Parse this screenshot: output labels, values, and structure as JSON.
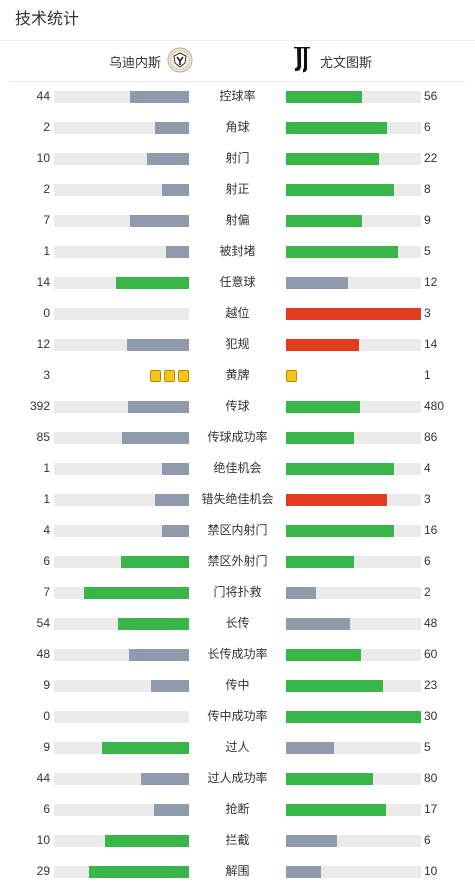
{
  "title": "技术统计",
  "teams": {
    "home": {
      "name": "乌迪内斯",
      "logo_icon": "udinese-crest-icon"
    },
    "away": {
      "name": "尤文图斯",
      "logo_icon": "juventus-logo-icon"
    }
  },
  "colors": {
    "green": "#39b54a",
    "gray": "#8f9aac",
    "red": "#e03c1f",
    "yellow_card": "#f5c518",
    "track": "#ebebeb"
  },
  "stats": [
    {
      "label": "控球率",
      "home": "44",
      "away": "56",
      "home_pct": 0.44,
      "away_pct": 0.56,
      "home_color": "gray",
      "away_color": "green"
    },
    {
      "label": "角球",
      "home": "2",
      "away": "6",
      "home_pct": 0.25,
      "away_pct": 0.75,
      "home_color": "gray",
      "away_color": "green"
    },
    {
      "label": "射门",
      "home": "10",
      "away": "22",
      "home_pct": 0.3125,
      "away_pct": 0.6875,
      "home_color": "gray",
      "away_color": "green"
    },
    {
      "label": "射正",
      "home": "2",
      "away": "8",
      "home_pct": 0.2,
      "away_pct": 0.8,
      "home_color": "gray",
      "away_color": "green"
    },
    {
      "label": "射偏",
      "home": "7",
      "away": "9",
      "home_pct": 0.4375,
      "away_pct": 0.5625,
      "home_color": "gray",
      "away_color": "green"
    },
    {
      "label": "被封堵",
      "home": "1",
      "away": "5",
      "home_pct": 0.1667,
      "away_pct": 0.8333,
      "home_color": "gray",
      "away_color": "green"
    },
    {
      "label": "任意球",
      "home": "14",
      "away": "12",
      "home_pct": 0.5385,
      "away_pct": 0.4615,
      "home_color": "green",
      "away_color": "gray"
    },
    {
      "label": "越位",
      "home": "0",
      "away": "3",
      "home_pct": 0,
      "away_pct": 1,
      "home_color": "gray",
      "away_color": "red"
    },
    {
      "label": "犯规",
      "home": "12",
      "away": "14",
      "home_pct": 0.4615,
      "away_pct": 0.5385,
      "home_color": "gray",
      "away_color": "red"
    },
    {
      "label": "黄牌",
      "home": "3",
      "away": "1",
      "type": "cards",
      "home_cards": 3,
      "away_cards": 1
    },
    {
      "label": "传球",
      "home": "392",
      "away": "480",
      "home_pct": 0.4495,
      "away_pct": 0.5505,
      "home_color": "gray",
      "away_color": "green"
    },
    {
      "label": "传球成功率",
      "home": "85",
      "away": "86",
      "home_pct": 0.497,
      "away_pct": 0.503,
      "home_color": "gray",
      "away_color": "green"
    },
    {
      "label": "绝佳机会",
      "home": "1",
      "away": "4",
      "home_pct": 0.2,
      "away_pct": 0.8,
      "home_color": "gray",
      "away_color": "green"
    },
    {
      "label": "错失绝佳机会",
      "home": "1",
      "away": "3",
      "home_pct": 0.25,
      "away_pct": 0.75,
      "home_color": "gray",
      "away_color": "red"
    },
    {
      "label": "禁区内射门",
      "home": "4",
      "away": "16",
      "home_pct": 0.2,
      "away_pct": 0.8,
      "home_color": "gray",
      "away_color": "green"
    },
    {
      "label": "禁区外射门",
      "home": "6",
      "away": "6",
      "home_pct": 0.5,
      "away_pct": 0.5,
      "home_color": "green",
      "away_color": "green"
    },
    {
      "label": "门将扑救",
      "home": "7",
      "away": "2",
      "home_pct": 0.7778,
      "away_pct": 0.2222,
      "home_color": "green",
      "away_color": "gray"
    },
    {
      "label": "长传",
      "home": "54",
      "away": "48",
      "home_pct": 0.5294,
      "away_pct": 0.4706,
      "home_color": "green",
      "away_color": "gray"
    },
    {
      "label": "长传成功率",
      "home": "48",
      "away": "60",
      "home_pct": 0.4444,
      "away_pct": 0.5556,
      "home_color": "gray",
      "away_color": "green"
    },
    {
      "label": "传中",
      "home": "9",
      "away": "23",
      "home_pct": 0.2813,
      "away_pct": 0.7188,
      "home_color": "gray",
      "away_color": "green"
    },
    {
      "label": "传中成功率",
      "home": "0",
      "away": "30",
      "home_pct": 0,
      "away_pct": 1,
      "home_color": "gray",
      "away_color": "green"
    },
    {
      "label": "过人",
      "home": "9",
      "away": "5",
      "home_pct": 0.6429,
      "away_pct": 0.3571,
      "home_color": "green",
      "away_color": "gray"
    },
    {
      "label": "过人成功率",
      "home": "44",
      "away": "80",
      "home_pct": 0.3548,
      "away_pct": 0.6452,
      "home_color": "gray",
      "away_color": "green"
    },
    {
      "label": "抢断",
      "home": "6",
      "away": "17",
      "home_pct": 0.2609,
      "away_pct": 0.7391,
      "home_color": "gray",
      "away_color": "green"
    },
    {
      "label": "拦截",
      "home": "10",
      "away": "6",
      "home_pct": 0.625,
      "away_pct": 0.375,
      "home_color": "green",
      "away_color": "gray"
    },
    {
      "label": "解围",
      "home": "29",
      "away": "10",
      "home_pct": 0.7436,
      "away_pct": 0.2564,
      "home_color": "green",
      "away_color": "gray"
    }
  ]
}
